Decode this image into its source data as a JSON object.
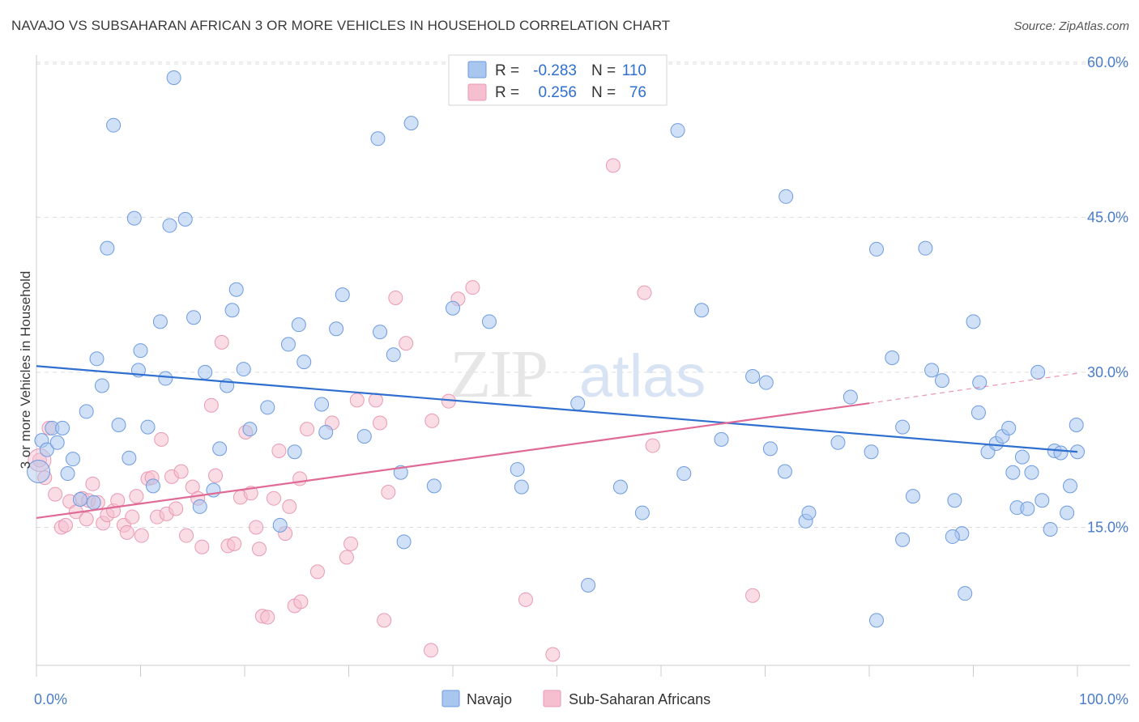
{
  "header": {
    "title": "NAVAJO VS SUBSAHARAN AFRICAN 3 OR MORE VEHICLES IN HOUSEHOLD CORRELATION CHART",
    "source": "Source: ZipAtlas.com"
  },
  "watermark": {
    "zip": "ZIP",
    "atlas": "atlas"
  },
  "legend": {
    "rows": [
      {
        "r_label": "R =",
        "r_value": "-0.283",
        "n_label": "N =",
        "n_value": "110"
      },
      {
        "r_label": "R =",
        "r_value": "0.256",
        "n_label": "N =",
        "n_value": "76"
      }
    ]
  },
  "bottom_legend": {
    "navajo": "Navajo",
    "subsaharan": "Sub-Saharan Africans"
  },
  "colors": {
    "navajo_fill": "#a9c6ee",
    "navajo_stroke": "#6d9be0",
    "navajo_line": "#2e6fd0",
    "sub_fill": "#f6bfd0",
    "sub_stroke": "#e99ab4",
    "sub_line": "#e06a96",
    "tick_text": "#4a7cc9",
    "grid": "#dddddd"
  },
  "chart_data": {
    "type": "scatter",
    "title": "NAVAJO VS SUBSAHARAN AFRICAN 3 OR MORE VEHICLES IN HOUSEHOLD CORRELATION CHART",
    "xlabel": "",
    "ylabel": "3 or more Vehicles in Household",
    "xlim": [
      0,
      100
    ],
    "ylim": [
      0,
      63
    ],
    "x_tick_labels": [
      "0.0%",
      "100.0%"
    ],
    "y_ticks": [
      15,
      30,
      45,
      60
    ],
    "y_tick_labels": [
      "15.0%",
      "30.0%",
      "45.0%",
      "60.0%"
    ],
    "grid": true,
    "legend_position": "top-center",
    "series": [
      {
        "name": "Navajo",
        "r": -0.283,
        "n": 110,
        "trend": {
          "x": [
            0,
            100
          ],
          "y": [
            30.6,
            22.3
          ]
        },
        "points": [
          [
            0.5,
            23.4
          ],
          [
            1.0,
            22.5
          ],
          [
            1.5,
            24.6
          ],
          [
            2.0,
            23.2
          ],
          [
            2.5,
            24.6
          ],
          [
            3.0,
            20.2
          ],
          [
            3.5,
            21.6
          ],
          [
            4.2,
            17.7
          ],
          [
            4.8,
            26.2
          ],
          [
            5.5,
            17.4
          ],
          [
            5.8,
            31.3
          ],
          [
            6.3,
            28.7
          ],
          [
            6.8,
            42.0
          ],
          [
            7.4,
            53.9
          ],
          [
            7.9,
            24.9
          ],
          [
            8.9,
            21.7
          ],
          [
            9.4,
            44.9
          ],
          [
            9.8,
            30.2
          ],
          [
            10.0,
            32.1
          ],
          [
            10.7,
            24.7
          ],
          [
            11.2,
            19.0
          ],
          [
            11.9,
            34.9
          ],
          [
            12.4,
            29.4
          ],
          [
            12.8,
            44.2
          ],
          [
            13.2,
            58.5
          ],
          [
            14.3,
            44.8
          ],
          [
            15.1,
            35.3
          ],
          [
            15.7,
            17.0
          ],
          [
            16.2,
            30.0
          ],
          [
            17.0,
            18.6
          ],
          [
            17.6,
            22.6
          ],
          [
            18.3,
            28.7
          ],
          [
            18.8,
            36.0
          ],
          [
            19.2,
            38.0
          ],
          [
            19.9,
            30.3
          ],
          [
            20.5,
            24.5
          ],
          [
            22.2,
            26.6
          ],
          [
            23.4,
            15.2
          ],
          [
            24.2,
            32.7
          ],
          [
            24.8,
            22.3
          ],
          [
            25.2,
            34.6
          ],
          [
            25.7,
            31.0
          ],
          [
            27.4,
            26.9
          ],
          [
            27.8,
            24.2
          ],
          [
            28.8,
            34.2
          ],
          [
            29.4,
            37.5
          ],
          [
            31.5,
            23.8
          ],
          [
            32.8,
            52.6
          ],
          [
            33.0,
            33.9
          ],
          [
            34.3,
            31.7
          ],
          [
            35.0,
            20.3
          ],
          [
            35.3,
            13.6
          ],
          [
            36.0,
            54.1
          ],
          [
            38.2,
            19.0
          ],
          [
            40.0,
            36.2
          ],
          [
            43.5,
            34.9
          ],
          [
            46.2,
            20.6
          ],
          [
            46.6,
            18.9
          ],
          [
            52.0,
            27.0
          ],
          [
            53.0,
            9.4
          ],
          [
            56.1,
            18.9
          ],
          [
            58.2,
            16.4
          ],
          [
            61.6,
            53.4
          ],
          [
            62.2,
            20.2
          ],
          [
            63.9,
            36.0
          ],
          [
            65.8,
            23.5
          ],
          [
            68.8,
            29.6
          ],
          [
            70.1,
            29.0
          ],
          [
            70.5,
            22.6
          ],
          [
            72.0,
            47.0
          ],
          [
            71.9,
            20.4
          ],
          [
            73.9,
            15.6
          ],
          [
            74.2,
            16.4
          ],
          [
            77.0,
            23.2
          ],
          [
            78.2,
            27.6
          ],
          [
            80.2,
            22.3
          ],
          [
            80.7,
            41.9
          ],
          [
            80.7,
            6.0
          ],
          [
            82.2,
            31.4
          ],
          [
            83.2,
            24.7
          ],
          [
            83.2,
            13.8
          ],
          [
            84.2,
            18.0
          ],
          [
            85.4,
            42.0
          ],
          [
            86.0,
            30.2
          ],
          [
            87.0,
            29.2
          ],
          [
            88.2,
            17.6
          ],
          [
            88.9,
            14.4
          ],
          [
            88.0,
            14.1
          ],
          [
            89.2,
            8.6
          ],
          [
            90.0,
            34.9
          ],
          [
            90.5,
            26.1
          ],
          [
            90.6,
            29.0
          ],
          [
            91.4,
            22.3
          ],
          [
            92.2,
            23.1
          ],
          [
            92.8,
            23.8
          ],
          [
            93.4,
            24.6
          ],
          [
            93.8,
            20.3
          ],
          [
            94.2,
            16.9
          ],
          [
            94.7,
            21.8
          ],
          [
            95.2,
            16.8
          ],
          [
            95.6,
            20.3
          ],
          [
            96.2,
            30.0
          ],
          [
            96.6,
            17.6
          ],
          [
            97.4,
            14.8
          ],
          [
            97.8,
            22.4
          ],
          [
            98.4,
            22.2
          ],
          [
            99.0,
            16.4
          ],
          [
            99.3,
            19.0
          ],
          [
            99.9,
            24.9
          ],
          [
            100.0,
            22.3
          ]
        ]
      },
      {
        "name": "Sub-Saharan Africans",
        "r": 0.256,
        "n": 76,
        "trend": {
          "x": [
            0,
            80
          ],
          "y": [
            15.9,
            27.0
          ]
        },
        "trend_dashed": {
          "x": [
            80,
            100
          ],
          "y": [
            27.0,
            29.9
          ]
        },
        "points": [
          [
            0.3,
            21.5
          ],
          [
            0.8,
            19.8
          ],
          [
            1.2,
            24.6
          ],
          [
            1.8,
            18.2
          ],
          [
            2.4,
            15.0
          ],
          [
            2.8,
            15.2
          ],
          [
            3.2,
            17.5
          ],
          [
            3.8,
            16.5
          ],
          [
            4.4,
            17.8
          ],
          [
            4.8,
            15.8
          ],
          [
            5.0,
            17.6
          ],
          [
            5.4,
            19.2
          ],
          [
            5.9,
            17.4
          ],
          [
            6.4,
            15.4
          ],
          [
            6.8,
            16.2
          ],
          [
            7.4,
            16.6
          ],
          [
            7.8,
            17.6
          ],
          [
            8.4,
            15.2
          ],
          [
            8.7,
            14.5
          ],
          [
            9.2,
            16.0
          ],
          [
            9.6,
            18.0
          ],
          [
            10.1,
            14.2
          ],
          [
            10.7,
            19.7
          ],
          [
            11.1,
            19.8
          ],
          [
            11.6,
            16.0
          ],
          [
            12.0,
            23.5
          ],
          [
            12.5,
            16.3
          ],
          [
            13.0,
            19.9
          ],
          [
            13.4,
            16.8
          ],
          [
            13.9,
            20.4
          ],
          [
            14.4,
            14.2
          ],
          [
            15.0,
            18.9
          ],
          [
            15.5,
            17.8
          ],
          [
            15.9,
            13.1
          ],
          [
            16.8,
            26.8
          ],
          [
            17.2,
            20.0
          ],
          [
            17.8,
            32.9
          ],
          [
            18.4,
            13.2
          ],
          [
            19.0,
            13.4
          ],
          [
            19.6,
            17.9
          ],
          [
            20.1,
            24.2
          ],
          [
            20.6,
            18.3
          ],
          [
            21.1,
            15.0
          ],
          [
            21.4,
            12.9
          ],
          [
            21.7,
            6.4
          ],
          [
            22.2,
            6.3
          ],
          [
            22.8,
            17.8
          ],
          [
            23.3,
            22.4
          ],
          [
            23.9,
            14.4
          ],
          [
            24.3,
            17.0
          ],
          [
            24.8,
            7.4
          ],
          [
            25.3,
            19.7
          ],
          [
            25.4,
            7.8
          ],
          [
            26.0,
            24.5
          ],
          [
            27.0,
            10.7
          ],
          [
            28.4,
            25.1
          ],
          [
            29.8,
            12.1
          ],
          [
            30.2,
            13.4
          ],
          [
            30.8,
            27.3
          ],
          [
            32.6,
            27.3
          ],
          [
            33.0,
            25.1
          ],
          [
            33.4,
            6.0
          ],
          [
            33.8,
            18.4
          ],
          [
            34.5,
            37.2
          ],
          [
            35.5,
            32.8
          ],
          [
            37.9,
            3.1
          ],
          [
            38.0,
            25.3
          ],
          [
            39.6,
            27.2
          ],
          [
            40.5,
            37.1
          ],
          [
            41.9,
            38.2
          ],
          [
            47.0,
            8.0
          ],
          [
            49.6,
            2.7
          ],
          [
            55.4,
            50.0
          ],
          [
            58.4,
            37.7
          ],
          [
            59.2,
            22.9
          ],
          [
            68.8,
            8.4
          ]
        ]
      }
    ]
  }
}
